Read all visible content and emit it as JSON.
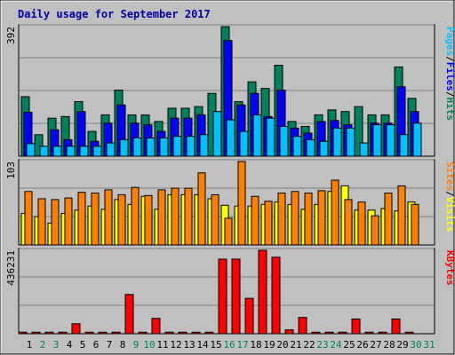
{
  "chart_data": [
    {
      "type": "bar",
      "panel": "pages-files-hits",
      "title": "Daily usage for September 2017",
      "y_max_label": "392",
      "ylim": [
        0,
        392
      ],
      "grid": true,
      "categories": [
        "1",
        "2",
        "3",
        "4",
        "5",
        "6",
        "7",
        "8",
        "9",
        "10",
        "11",
        "12",
        "13",
        "14",
        "15",
        "16",
        "17",
        "18",
        "19",
        "20",
        "21",
        "22",
        "23",
        "24",
        "25",
        "26",
        "27",
        "28",
        "29",
        "30",
        "31"
      ],
      "weekend_days": [
        "2",
        "3",
        "9",
        "10",
        "16",
        "17",
        "23",
        "24",
        "30",
        "31"
      ],
      "label_parts": [
        "Pages",
        "/",
        "Files",
        "/",
        "Hits"
      ],
      "series": [
        {
          "name": "Hits",
          "color": "#00805c",
          "values": [
            180,
            65,
            115,
            120,
            165,
            75,
            125,
            200,
            125,
            125,
            105,
            145,
            145,
            150,
            190,
            392,
            165,
            225,
            205,
            275,
            105,
            90,
            125,
            140,
            135,
            150,
            125,
            125,
            270,
            175,
            null
          ]
        },
        {
          "name": "Files",
          "color": "#0000ff",
          "values": [
            133,
            0,
            80,
            50,
            135,
            45,
            100,
            155,
            100,
            95,
            75,
            115,
            115,
            125,
            0,
            350,
            155,
            190,
            120,
            200,
            85,
            70,
            105,
            108,
            95,
            0,
            100,
            100,
            210,
            135,
            null
          ]
        },
        {
          "name": "Pages",
          "color": "#00c0ff",
          "values": [
            38,
            30,
            30,
            30,
            30,
            30,
            40,
            50,
            55,
            55,
            55,
            60,
            60,
            65,
            135,
            110,
            75,
            125,
            115,
            90,
            60,
            50,
            45,
            85,
            85,
            40,
            95,
            95,
            65,
            100,
            null
          ]
        }
      ]
    },
    {
      "type": "bar",
      "panel": "visits-sites",
      "y_max_label": "103",
      "ylim": [
        0,
        103
      ],
      "grid": true,
      "label_parts": [
        "Sites",
        "/",
        "Visits"
      ],
      "series": [
        {
          "name": "Visits",
          "color": "#ffff00",
          "values": [
            39,
            35,
            27,
            39,
            43,
            48,
            44,
            56,
            50,
            60,
            44,
            62,
            62,
            62,
            57,
            49,
            48,
            48,
            50,
            53,
            50,
            44,
            50,
            66,
            73,
            43,
            43,
            45,
            42,
            53,
            null
          ]
        },
        {
          "name": "Sites",
          "color": "#ff8000",
          "values": [
            66,
            57,
            56,
            58,
            65,
            64,
            68,
            62,
            71,
            61,
            68,
            70,
            70,
            89,
            62,
            33,
            103,
            60,
            54,
            64,
            66,
            64,
            67,
            80,
            56,
            53,
            36,
            64,
            73,
            50,
            null
          ]
        }
      ]
    },
    {
      "type": "bar",
      "panel": "kbytes",
      "y_max_label": "436231",
      "ylim": [
        0,
        436231
      ],
      "grid": true,
      "label_parts": [
        "KBytes"
      ],
      "series": [
        {
          "name": "KBytes",
          "color": "#ff0000",
          "values": [
            8000,
            8000,
            8000,
            8000,
            52000,
            8000,
            8000,
            8000,
            205000,
            8000,
            80000,
            8000,
            8000,
            8000,
            8000,
            390000,
            390000,
            185000,
            436231,
            400000,
            20000,
            85000,
            8000,
            8000,
            8000,
            77000,
            8000,
            8000,
            77000,
            8000,
            null
          ]
        }
      ]
    }
  ]
}
